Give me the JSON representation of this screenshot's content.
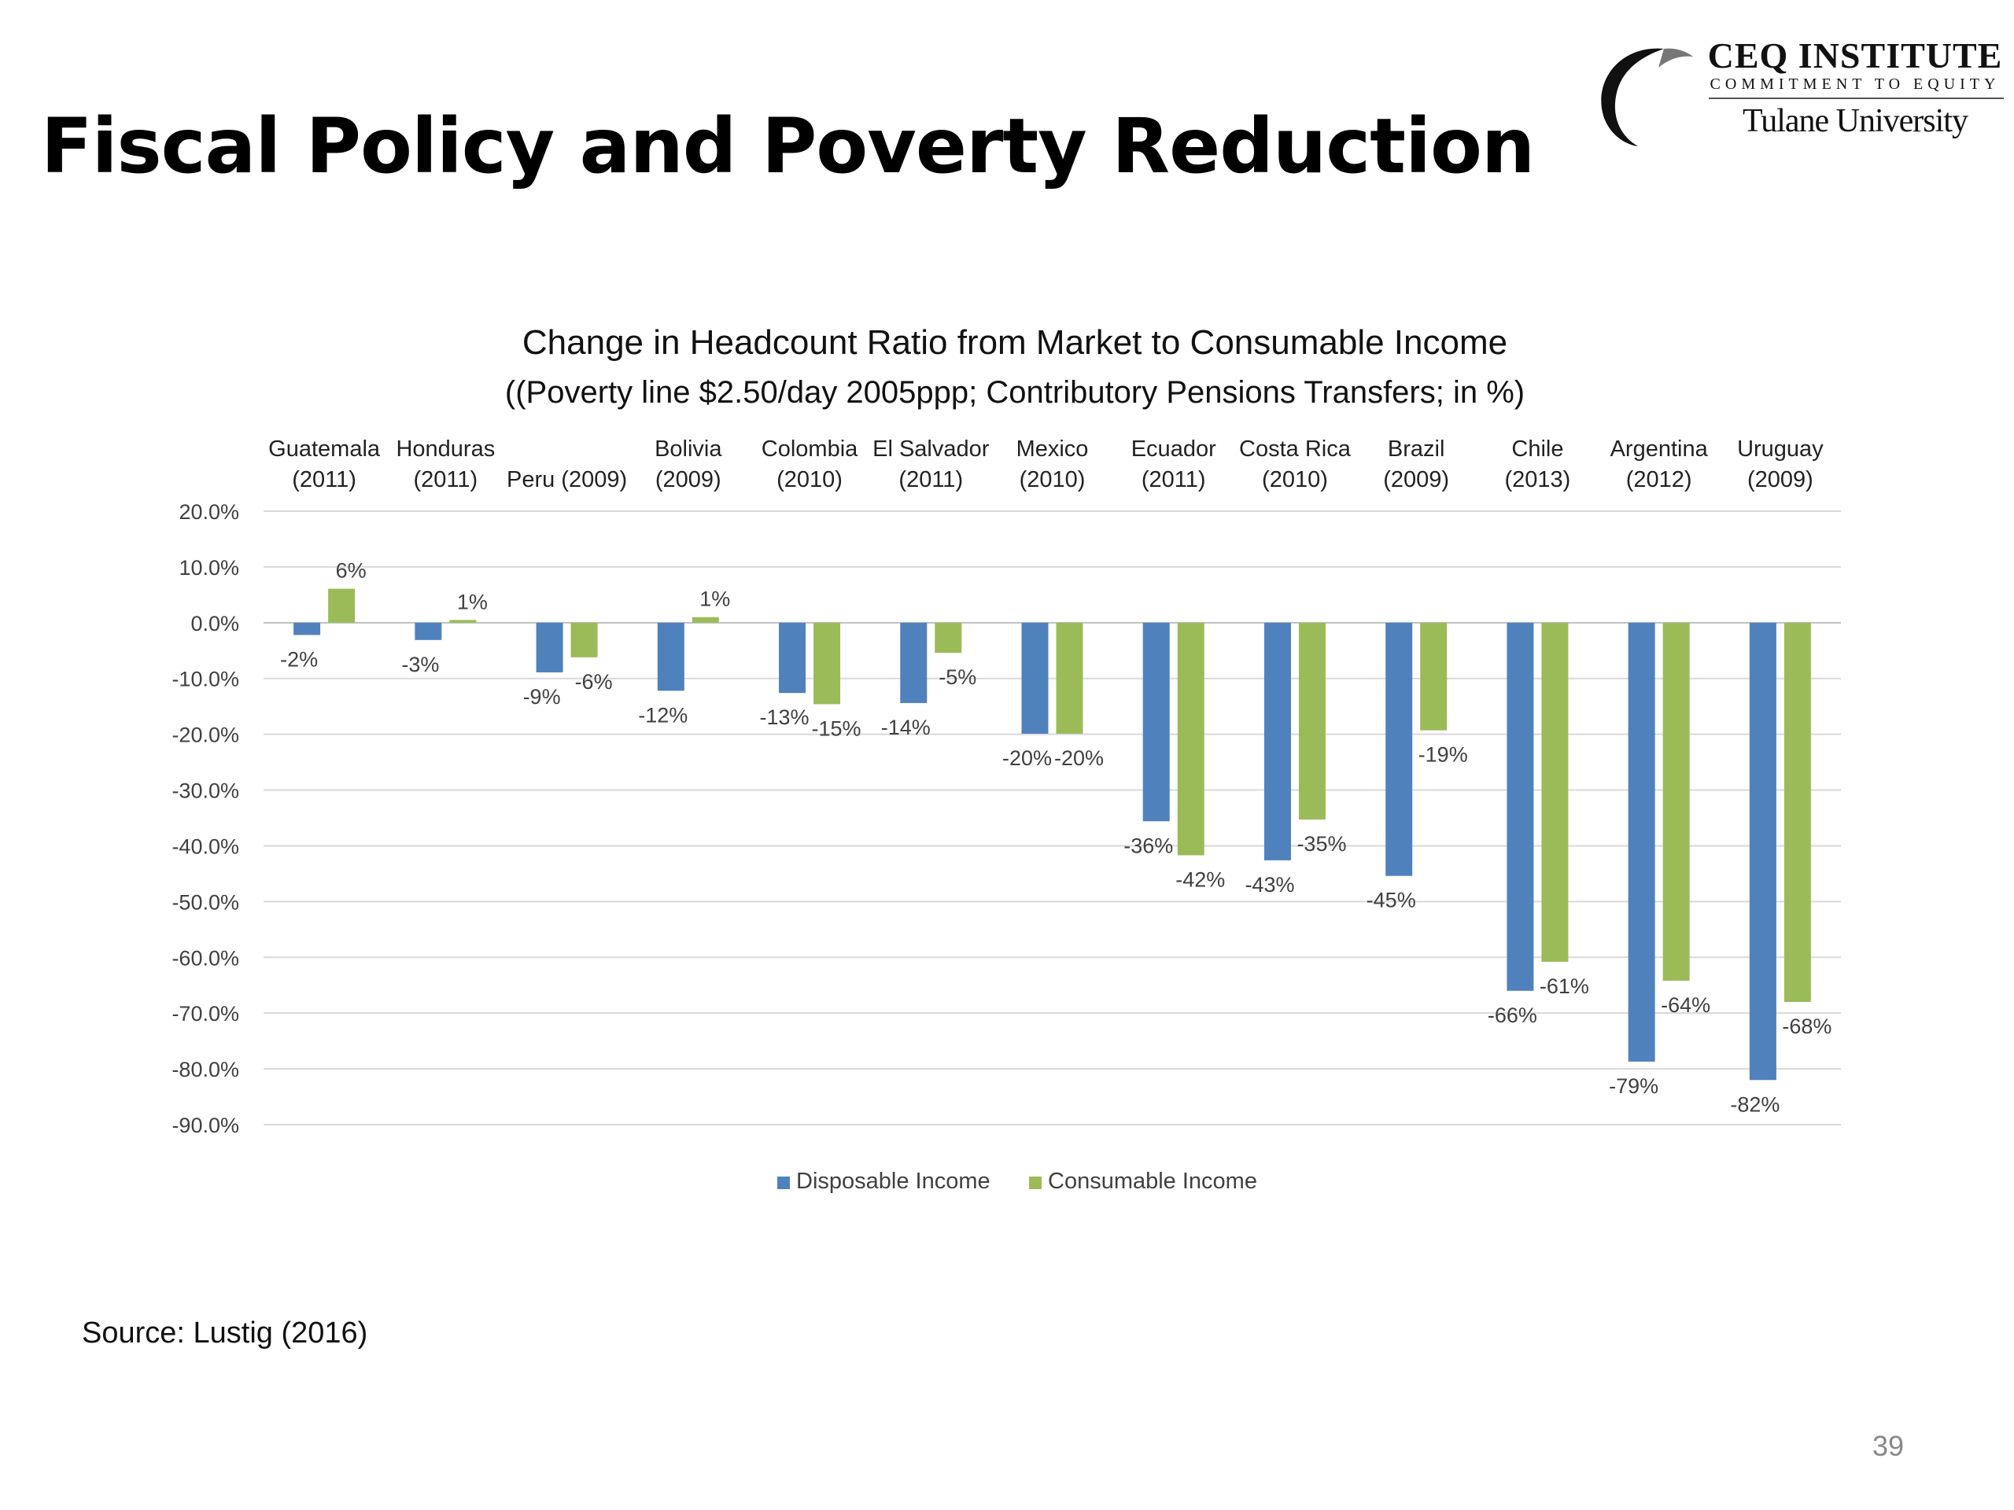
{
  "slide": {
    "title": "Fiscal Policy and Poverty Reduction",
    "source": "Source: Lustig (2016)",
    "page_number": "39"
  },
  "logo": {
    "name": "CEQ INSTITUTE",
    "tagline": "COMMITMENT TO EQUITY",
    "university": "Tulane University"
  },
  "colors": {
    "disposable": "#4F81BD",
    "consumable": "#9BBB59",
    "gridline": "#D9D9D9",
    "text": "#404040"
  },
  "chart_data": {
    "type": "bar",
    "title": "Change in Headcount Ratio from Market to Consumable Income",
    "subtitle": "((Poverty line $2.50/day 2005ppp; Contributory Pensions Transfers; in %)",
    "categories": [
      {
        "name": "Guatemala",
        "year": "(2011)"
      },
      {
        "name": "Honduras",
        "year": "(2011)"
      },
      {
        "name": "Peru (2009)",
        "year": ""
      },
      {
        "name": "Bolivia",
        "year": "(2009)"
      },
      {
        "name": "Colombia",
        "year": "(2010)"
      },
      {
        "name": "El Salvador",
        "year": "(2011)"
      },
      {
        "name": "Mexico",
        "year": "(2010)"
      },
      {
        "name": "Ecuador",
        "year": "(2011)"
      },
      {
        "name": "Costa Rica",
        "year": "(2010)"
      },
      {
        "name": "Brazil",
        "year": "(2009)"
      },
      {
        "name": "Chile",
        "year": "(2013)"
      },
      {
        "name": "Argentina",
        "year": "(2012)"
      },
      {
        "name": "Uruguay",
        "year": "(2009)"
      }
    ],
    "series": [
      {
        "name": "Disposable Income",
        "values": [
          -2.2,
          -3.1,
          -8.9,
          -12.2,
          -12.6,
          -14.4,
          -19.9,
          -35.6,
          -42.6,
          -45.4,
          -66.0,
          -78.7,
          -82.0
        ],
        "labels": [
          "-2%",
          "-3%",
          "-9%",
          "-12%",
          "-13%",
          "-14%",
          "-20%",
          "-36%",
          "-43%",
          "-45%",
          "-66%",
          "-79%",
          "-82%"
        ]
      },
      {
        "name": "Consumable Income",
        "values": [
          6.1,
          0.5,
          -6.2,
          1.0,
          -14.6,
          -5.4,
          -19.9,
          -41.7,
          -35.3,
          -19.3,
          -60.8,
          -64.2,
          -68.0
        ],
        "labels": [
          "6%",
          "1%",
          "-6%",
          "1%",
          "-15%",
          "-5%",
          "-20%",
          "-42%",
          "-35%",
          "-19%",
          "-61%",
          "-64%",
          "-68%"
        ]
      }
    ],
    "y_ticks": [
      "20.0%",
      "10.0%",
      "0.0%",
      "-10.0%",
      "-20.0%",
      "-30.0%",
      "-40.0%",
      "-50.0%",
      "-60.0%",
      "-70.0%",
      "-80.0%",
      "-90.0%"
    ],
    "ylim": [
      -90,
      20
    ],
    "y_step": 10,
    "x_axis_position": "top",
    "grid": true,
    "legend": "bottom"
  }
}
